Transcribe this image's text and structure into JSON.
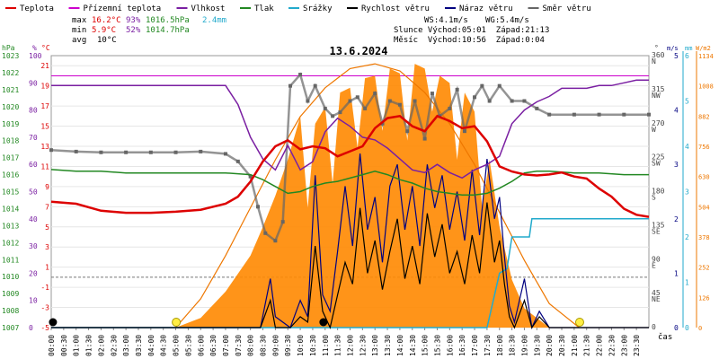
{
  "chart_data": {
    "type": "line",
    "title": "13.6.2024",
    "xlabel": "čas",
    "legend": [
      {
        "name": "Teplota",
        "color": "#dd0000"
      },
      {
        "name": "Přízemní teplota",
        "color": "#cc00cc"
      },
      {
        "name": "Vlhkost",
        "color": "#7a1fa2"
      },
      {
        "name": "Tlak",
        "color": "#228822"
      },
      {
        "name": "Srážky",
        "color": "#22aacc"
      },
      {
        "name": "Rychlost větru",
        "color": "#000000"
      },
      {
        "name": "Náraz větru",
        "color": "#000080"
      },
      {
        "name": "Směr větru",
        "color": "#666666"
      }
    ],
    "stats": {
      "max_label": "max",
      "min_label": "min",
      "avg_label": "avg",
      "temp_max": "16.2°C",
      "hum_max": "93%",
      "press_max": "1016.5hPa",
      "rain_total": "2.4mm",
      "temp_min": "5.9°C",
      "hum_min": "52%",
      "press_min": "1014.7hPa",
      "temp_avg": "10°C",
      "ws": "WS:4.1m/s",
      "wg": "WG:5.4m/s",
      "sun": "Slunce Východ:05:01  Západ:21:13",
      "moon": "Měsíc  Východ:10:56  Západ:0:04"
    },
    "axes": {
      "hpa_label": "hPa",
      "pct_label": "%",
      "c_label": "°C",
      "deg_label": "°",
      "ms_label": "m/s",
      "mm_label": "mm",
      "wm2_label": "W/m2",
      "hpa_ticks": [
        "1023",
        "1022",
        "1021",
        "1020",
        "1019",
        "1018",
        "1017",
        "1016",
        "1015",
        "1014",
        "1013",
        "1012",
        "1011",
        "1010",
        "1009",
        "1008",
        "1007"
      ],
      "pct_ticks": [
        "100",
        "90",
        "80",
        "70",
        "60",
        "50",
        "40",
        "30",
        "20",
        "10",
        "0"
      ],
      "c_ticks": [
        "21",
        "19",
        "17",
        "15",
        "13",
        "11",
        "9",
        "7",
        "5",
        "3",
        "1",
        "-1",
        "-3",
        "-5"
      ],
      "dir_ticks": [
        "360",
        "N",
        "315",
        "NW",
        "270",
        "W",
        "225",
        "SW",
        "180",
        "S",
        "135",
        "SE",
        "90",
        "E",
        "45",
        "NE",
        "0"
      ],
      "ms_ticks": [
        "5",
        "4",
        "3",
        "2",
        "1",
        "0"
      ],
      "mm_ticks": [
        "6",
        "5",
        "4",
        "3",
        "2",
        "1",
        "0"
      ],
      "wm2_ticks": [
        "1134",
        "1008",
        "882",
        "756",
        "630",
        "504",
        "378",
        "252",
        "126",
        "0"
      ],
      "time_ticks": [
        "00:00",
        "00:30",
        "01:00",
        "01:30",
        "02:00",
        "02:30",
        "03:00",
        "03:30",
        "04:00",
        "04:30",
        "05:00",
        "05:30",
        "06:00",
        "06:30",
        "07:00",
        "07:30",
        "08:00",
        "08:30",
        "09:00",
        "09:30",
        "10:00",
        "10:30",
        "11:00",
        "11:30",
        "12:00",
        "12:30",
        "13:00",
        "13:30",
        "14:00",
        "14:30",
        "15:00",
        "15:30",
        "16:00",
        "16:30",
        "17:00",
        "17:30",
        "18:00",
        "18:30",
        "19:00",
        "19:30",
        "20:00",
        "20:30",
        "21:00",
        "21:30",
        "22:00",
        "22:30",
        "23:00",
        "23:30"
      ],
      "temp_range": [
        -5,
        22
      ],
      "hum_range": [
        0,
        100
      ],
      "press_range": [
        1007,
        1023
      ],
      "dir_range": [
        0,
        360
      ],
      "wind_range": [
        0,
        5
      ],
      "rain_range": [
        0,
        6
      ],
      "solar_range": [
        0,
        1134
      ]
    },
    "reference_lines": {
      "zero_temp": 0,
      "ground_temp": 20
    },
    "series": {
      "temperature": {
        "x": [
          0,
          1,
          2,
          3,
          4,
          5,
          6,
          7,
          7.5,
          8,
          8.5,
          9,
          9.5,
          10,
          10.5,
          11,
          11.5,
          12,
          12.5,
          13,
          13.5,
          14,
          14.5,
          15,
          15.5,
          16,
          16.5,
          17,
          17.5,
          18,
          18.5,
          19,
          19.5,
          20,
          20.5,
          21,
          21.5,
          22,
          22.5,
          23,
          23.5,
          24
        ],
        "values": [
          7.5,
          7.3,
          6.6,
          6.4,
          6.4,
          6.5,
          6.7,
          7.3,
          8,
          9.5,
          11.5,
          13,
          13.6,
          12.7,
          13,
          12.8,
          12,
          12.5,
          13,
          14.8,
          15.8,
          16,
          15,
          14.5,
          16,
          15.5,
          14.8,
          15,
          13.5,
          11,
          10.5,
          10.2,
          10.1,
          10.2,
          10.4,
          10,
          9.8,
          8.8,
          8,
          6.8,
          6.2,
          6
        ]
      },
      "humidity": {
        "x": [
          0,
          1,
          2,
          3,
          4,
          5,
          6,
          7,
          7.5,
          8,
          8.5,
          9,
          9.5,
          10,
          10.5,
          11,
          11.5,
          12,
          12.5,
          13,
          13.5,
          14,
          14.5,
          15,
          15.5,
          16,
          16.5,
          17,
          17.5,
          18,
          18.5,
          19,
          19.5,
          20,
          20.5,
          21,
          21.5,
          22,
          22.5,
          23,
          23.5,
          24
        ],
        "values": [
          89,
          89,
          89,
          89,
          89,
          89,
          89,
          89,
          82,
          70,
          62,
          58,
          67,
          58,
          61,
          72,
          77,
          74,
          70,
          69,
          66,
          62,
          58,
          57,
          60,
          57,
          55,
          58,
          60,
          63,
          75,
          80,
          83,
          85,
          88,
          88,
          88,
          89,
          89,
          90,
          91,
          91
        ]
      },
      "pressure": {
        "x": [
          0,
          1,
          2,
          3,
          4,
          5,
          6,
          7,
          8,
          8.5,
          9,
          9.5,
          10,
          10.5,
          11,
          11.5,
          12,
          12.5,
          13,
          13.5,
          14,
          14.5,
          15,
          15.5,
          16,
          16.5,
          17,
          17.5,
          18,
          18.5,
          19,
          19.5,
          20,
          21,
          22,
          23,
          24
        ],
        "values": [
          1016.3,
          1016.2,
          1016.2,
          1016.1,
          1016.1,
          1016.1,
          1016.1,
          1016.1,
          1016.0,
          1015.7,
          1015.3,
          1014.9,
          1015.0,
          1015.3,
          1015.5,
          1015.6,
          1015.8,
          1016.0,
          1016.2,
          1016.0,
          1015.7,
          1015.5,
          1015.2,
          1015.0,
          1014.9,
          1014.8,
          1014.8,
          1014.9,
          1015.2,
          1015.6,
          1016.1,
          1016.2,
          1016.2,
          1016.1,
          1016.1,
          1016.0,
          1016.0
        ]
      },
      "precipitation": {
        "x": [
          0,
          17.5,
          18,
          18.3,
          18.5,
          19.2,
          19.3,
          19.5,
          22,
          22.1,
          24
        ],
        "values": [
          0,
          0,
          1.2,
          1.3,
          2.0,
          2.0,
          2.4,
          2.4,
          2.4,
          2.4,
          2.4
        ]
      },
      "wind_speed": {
        "x": [
          0,
          8.4,
          8.8,
          9,
          9.6,
          10,
          10.3,
          10.6,
          10.9,
          11.2,
          11.5,
          11.8,
          12.1,
          12.4,
          12.7,
          13,
          13.3,
          13.6,
          13.9,
          14.2,
          14.5,
          14.8,
          15.1,
          15.4,
          15.7,
          16,
          16.3,
          16.6,
          16.9,
          17.2,
          17.5,
          17.8,
          18,
          18.2,
          18.4,
          18.6,
          19,
          19.3,
          19.6,
          20,
          24
        ],
        "values": [
          0,
          0,
          0.5,
          0,
          0,
          0.2,
          0.1,
          1.5,
          0.3,
          0,
          0.6,
          1.2,
          0.8,
          2.2,
          1.0,
          1.6,
          0.7,
          1.4,
          2.0,
          0.9,
          1.5,
          0.8,
          2.1,
          1.3,
          1.9,
          1.0,
          1.4,
          0.8,
          1.7,
          1.0,
          2.3,
          1.2,
          1.6,
          0.8,
          0.2,
          0,
          0.5,
          0,
          0.2,
          0,
          0
        ]
      },
      "wind_gust": {
        "x": [
          0,
          8.4,
          8.8,
          9,
          9.6,
          10,
          10.3,
          10.6,
          10.9,
          11.2,
          11.5,
          11.8,
          12.1,
          12.4,
          12.7,
          13,
          13.3,
          13.6,
          13.9,
          14.2,
          14.5,
          14.8,
          15.1,
          15.4,
          15.7,
          16,
          16.3,
          16.6,
          16.9,
          17.2,
          17.5,
          17.8,
          18,
          18.2,
          18.4,
          18.6,
          19,
          19.3,
          19.6,
          20,
          24
        ],
        "values": [
          0,
          0,
          0.9,
          0.2,
          0,
          0.5,
          0.2,
          2.8,
          0.6,
          0.3,
          1.4,
          2.6,
          1.5,
          3.2,
          1.8,
          2.4,
          1.2,
          2.6,
          3.0,
          1.8,
          2.6,
          1.5,
          3.0,
          2.2,
          2.8,
          1.8,
          2.5,
          1.6,
          2.9,
          1.7,
          3.1,
          2.0,
          2.4,
          1.3,
          0.4,
          0.1,
          0.9,
          0,
          0.3,
          0,
          0
        ]
      },
      "wind_direction": {
        "x": [
          0,
          1,
          2,
          3,
          4,
          5,
          6,
          7,
          7.5,
          8,
          8.3,
          8.6,
          9,
          9.3,
          9.6,
          10,
          10.3,
          10.6,
          11,
          11.3,
          11.6,
          12,
          12.3,
          12.6,
          13,
          13.3,
          13.6,
          14,
          14.3,
          14.6,
          15,
          15.3,
          15.6,
          16,
          16.3,
          16.6,
          17,
          17.3,
          17.6,
          18,
          18.5,
          19,
          19.5,
          20,
          21,
          22,
          23,
          24
        ],
        "values": [
          235,
          233,
          232,
          232,
          232,
          232,
          233,
          230,
          220,
          200,
          160,
          125,
          115,
          140,
          320,
          335,
          300,
          320,
          290,
          280,
          285,
          300,
          305,
          290,
          310,
          270,
          300,
          295,
          260,
          300,
          250,
          310,
          280,
          290,
          315,
          260,
          305,
          320,
          300,
          320,
          300,
          300,
          290,
          282,
          282,
          282,
          282,
          282
        ]
      },
      "solar_radiation": {
        "x": [
          0,
          5,
          6,
          7,
          8,
          8.5,
          9,
          9.5,
          10,
          10.3,
          10.6,
          11,
          11.3,
          11.6,
          12,
          12.3,
          12.6,
          13,
          13.3,
          13.6,
          14,
          14.3,
          14.6,
          15,
          15.3,
          15.6,
          16,
          16.3,
          16.6,
          17,
          17.3,
          17.6,
          18,
          18.5,
          19,
          20,
          24
        ],
        "values": [
          0,
          0,
          40,
          150,
          300,
          420,
          550,
          700,
          880,
          500,
          850,
          920,
          600,
          980,
          1000,
          750,
          1040,
          1050,
          820,
          1080,
          1060,
          780,
          1100,
          1080,
          900,
          1050,
          1020,
          700,
          980,
          900,
          500,
          700,
          420,
          200,
          80,
          0,
          0
        ]
      },
      "theoretical_solar": {
        "x": [
          5,
          6,
          7,
          8,
          9,
          10,
          11,
          12,
          13,
          14,
          15,
          16,
          17,
          18,
          19,
          20,
          21.2
        ],
        "values": [
          0,
          120,
          300,
          500,
          700,
          880,
          1000,
          1080,
          1100,
          1070,
          980,
          850,
          680,
          480,
          280,
          100,
          0
        ]
      }
    },
    "markers": {
      "sun_times": [
        5.02,
        21.22
      ],
      "moon_times": [
        0.07,
        10.93
      ]
    }
  }
}
